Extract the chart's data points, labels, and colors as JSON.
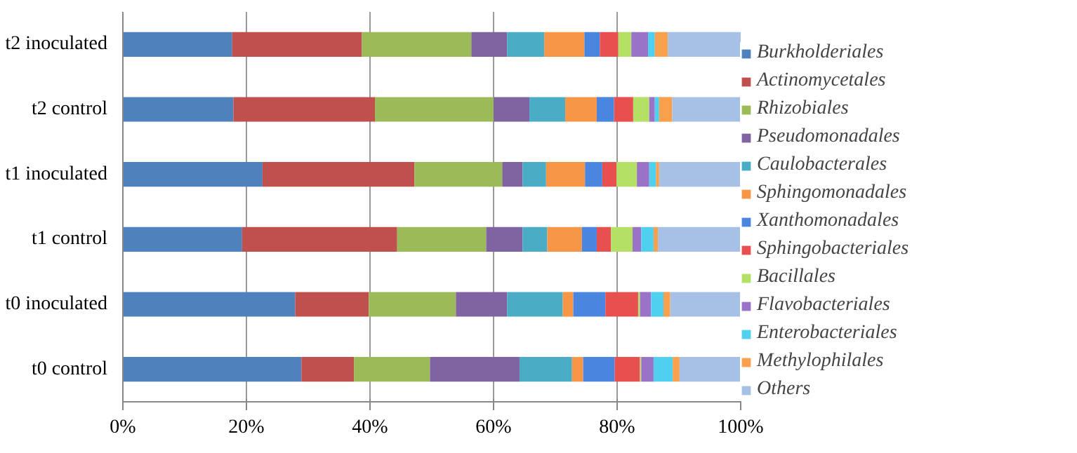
{
  "chart_data": {
    "type": "bar",
    "orientation": "horizontal",
    "stacked": true,
    "categories": [
      "t2 inoculated",
      "t2 control",
      "t1 inoculated",
      "t1 control",
      "t0 inoculated",
      "t0 control"
    ],
    "xlim": [
      0,
      100
    ],
    "xticks": [
      {
        "value": 0,
        "label": "0%"
      },
      {
        "value": 20,
        "label": "20%"
      },
      {
        "value": 40,
        "label": "40%"
      },
      {
        "value": 60,
        "label": "60%"
      },
      {
        "value": 80,
        "label": "80%"
      },
      {
        "value": 100,
        "label": "100%"
      }
    ],
    "grid": "x",
    "legend": "right",
    "series": [
      {
        "name": "Burkholderiales",
        "color": "#4f81bd",
        "values": [
          17.7,
          17.9,
          22.6,
          19.3,
          27.9,
          28.9
        ]
      },
      {
        "name": "Actinomycetales",
        "color": "#c0504d",
        "values": [
          21.0,
          22.9,
          24.6,
          25.1,
          11.9,
          8.5
        ]
      },
      {
        "name": "Rhizobiales",
        "color": "#9bbb59",
        "values": [
          17.7,
          19.2,
          14.2,
          14.4,
          14.1,
          12.3
        ]
      },
      {
        "name": "Pseudomonadales",
        "color": "#8064a2",
        "values": [
          5.8,
          5.8,
          3.3,
          5.9,
          8.3,
          14.5
        ]
      },
      {
        "name": "Caulobacterales",
        "color": "#4bacc6",
        "values": [
          6.0,
          5.8,
          3.8,
          4.0,
          9.0,
          8.5
        ]
      },
      {
        "name": "Sphingomonadales",
        "color": "#f79646",
        "values": [
          6.5,
          5.1,
          6.3,
          5.6,
          1.7,
          1.8
        ]
      },
      {
        "name": "Xanthomonadales",
        "color": "#4a86e0",
        "values": [
          2.5,
          2.8,
          2.8,
          2.4,
          5.2,
          5.1
        ]
      },
      {
        "name": "Sphingobacteriales",
        "color": "#e85050",
        "values": [
          3.0,
          3.1,
          2.3,
          2.3,
          5.3,
          4.1
        ]
      },
      {
        "name": "Bacillales",
        "color": "#b3e065",
        "values": [
          2.1,
          2.6,
          3.3,
          3.5,
          0.3,
          0.2
        ]
      },
      {
        "name": "Flavobacteriales",
        "color": "#9a72c7",
        "values": [
          2.7,
          0.9,
          2.0,
          1.4,
          1.8,
          2.0
        ]
      },
      {
        "name": "Enterobacteriales",
        "color": "#4fd0ef",
        "values": [
          1.1,
          0.7,
          1.1,
          2.0,
          2.0,
          3.1
        ]
      },
      {
        "name": "Methylophilales",
        "color": "#f9a04c",
        "values": [
          2.1,
          2.1,
          0.5,
          0.7,
          1.1,
          1.1
        ]
      },
      {
        "name": "Others",
        "color": "#a7c0e6",
        "values": [
          11.8,
          11.1,
          13.2,
          13.4,
          11.4,
          9.9
        ]
      }
    ]
  }
}
